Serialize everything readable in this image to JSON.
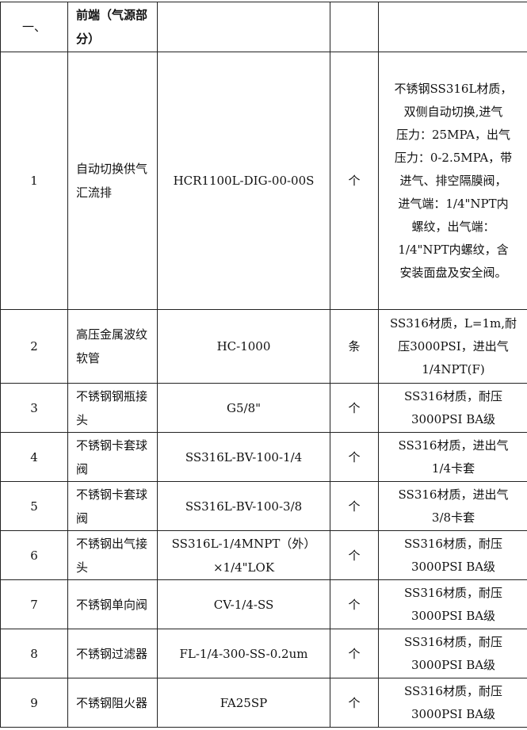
{
  "section": {
    "number": "一、",
    "title": "前端（气源部分）"
  },
  "rows": [
    {
      "no": "1",
      "name": "自动切换供气汇流排",
      "model": "HCR1100L-DIG-00-00S",
      "unit": "个",
      "desc": "不锈钢SS316L材质，\n双侧自动切换,进气\n压力：25MPA，出气\n压力：0-2.5MPA，带\n进气、排空隔膜阀，\n进气端：1/4\"NPT内\n螺纹，出气端：\n1/4\"NPT内螺纹，含\n安装面盘及安全阀。"
    },
    {
      "no": "2",
      "name": "高压金属波纹软管",
      "model": "HC-1000",
      "unit": "条",
      "desc": "SS316材质，L=1m,耐\n压3000PSI，进出气\n1/4NPT(F)"
    },
    {
      "no": "3",
      "name": "不锈钢钢瓶接头",
      "model": "G5/8\"",
      "unit": "个",
      "desc": "SS316材质，耐压\n3000PSI BA级"
    },
    {
      "no": "4",
      "name": "不锈钢卡套球阀",
      "model": "SS316L-BV-100-1/4",
      "unit": "个",
      "desc": "SS316材质，进出气\n1/4卡套"
    },
    {
      "no": "5",
      "name": "不锈钢卡套球阀",
      "model": "SS316L-BV-100-3/8",
      "unit": "个",
      "desc": "SS316材质，进出气\n3/8卡套"
    },
    {
      "no": "6",
      "name": "不锈钢出气接头",
      "model": "SS316L-1/4MNPT（外）×1/4\"LOK",
      "unit": "个",
      "desc": "SS316材质，耐压\n3000PSI BA级"
    },
    {
      "no": "7",
      "name": "不锈钢单向阀",
      "model": "CV-1/4-SS",
      "unit": "个",
      "desc": "SS316材质，耐压\n3000PSI BA级"
    },
    {
      "no": "8",
      "name": "不锈钢过滤器",
      "model": "FL-1/4-300-SS-0.2um",
      "unit": "个",
      "desc": "SS316材质，耐压\n3000PSI BA级"
    },
    {
      "no": "9",
      "name": "不锈钢阻火器",
      "model": "FA25SP",
      "unit": "个",
      "desc": "SS316材质，耐压\n3000PSI BA级"
    }
  ]
}
